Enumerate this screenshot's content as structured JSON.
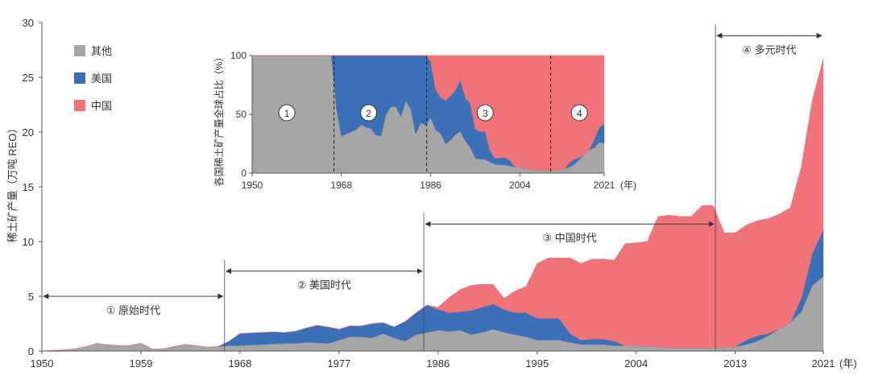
{
  "chart_data": [
    {
      "type": "area",
      "stacked": true,
      "ylabel": "稀土矿产量（万吨 REO）",
      "x_unit": "(年)",
      "xlim": [
        1950,
        2021
      ],
      "ylim": [
        0,
        30
      ],
      "x_ticks": [
        1950,
        1959,
        1968,
        1977,
        1986,
        1995,
        2004,
        2013,
        2021
      ],
      "y_ticks": [
        0,
        5,
        10,
        15,
        20,
        25,
        30
      ],
      "legend_position": "top-left",
      "x": [
        1950,
        1951,
        1952,
        1953,
        1954,
        1955,
        1956,
        1957,
        1958,
        1959,
        1960,
        1961,
        1962,
        1963,
        1964,
        1965,
        1966,
        1967,
        1968,
        1969,
        1970,
        1971,
        1972,
        1973,
        1974,
        1975,
        1976,
        1977,
        1978,
        1979,
        1980,
        1981,
        1982,
        1983,
        1984,
        1985,
        1986,
        1987,
        1988,
        1989,
        1990,
        1991,
        1992,
        1993,
        1994,
        1995,
        1996,
        1997,
        1998,
        1999,
        2000,
        2001,
        2002,
        2003,
        2004,
        2005,
        2006,
        2007,
        2008,
        2009,
        2010,
        2011,
        2012,
        2013,
        2014,
        2015,
        2016,
        2017,
        2018,
        2019,
        2020,
        2021
      ],
      "series": [
        {
          "name": "其他",
          "color": "#a6a6a6",
          "values": [
            0,
            0.05,
            0.1,
            0.2,
            0.4,
            0.7,
            0.55,
            0.5,
            0.5,
            0.7,
            0.2,
            0.2,
            0.4,
            0.6,
            0.5,
            0.35,
            0.4,
            0.5,
            0.5,
            0.55,
            0.6,
            0.65,
            0.7,
            0.7,
            0.8,
            0.75,
            0.7,
            1.0,
            1.3,
            1.3,
            1.2,
            1.6,
            1.2,
            0.9,
            1.5,
            1.7,
            1.9,
            1.8,
            1.9,
            1.5,
            1.7,
            2.0,
            1.7,
            1.5,
            1.3,
            1.0,
            1.0,
            1.0,
            0.8,
            0.6,
            0.6,
            0.6,
            0.5,
            0.5,
            0.5,
            0.4,
            0.4,
            0.3,
            0.3,
            0.3,
            0.3,
            0.3,
            0.3,
            0.4,
            0.6,
            0.9,
            1.4,
            2.0,
            2.6,
            3.6,
            6.0,
            6.8
          ]
        },
        {
          "name": "美国",
          "color": "#3b6fb6",
          "values": [
            0,
            0,
            0,
            0,
            0,
            0,
            0,
            0,
            0,
            0,
            0,
            0,
            0,
            0,
            0,
            0,
            0,
            0.4,
            1.1,
            1.1,
            1.1,
            1.1,
            1.0,
            1.1,
            1.3,
            1.6,
            1.5,
            1.0,
            1.0,
            1.0,
            1.3,
            1.0,
            1.0,
            1.8,
            2.0,
            2.5,
            1.9,
            1.7,
            1.7,
            2.2,
            2.3,
            2.3,
            2.1,
            2.0,
            2.2,
            2.0,
            2.0,
            2.0,
            0.8,
            0.4,
            0.5,
            0.5,
            0.4,
            0.0,
            0.0,
            0.0,
            0.0,
            0.0,
            0.0,
            0.0,
            0.0,
            0.0,
            0.0,
            0.0,
            0.4,
            0.5,
            0.2,
            0.0,
            0.0,
            1.2,
            2.9,
            4.3
          ]
        },
        {
          "name": "中国",
          "color": "#f0737a",
          "values": [
            0,
            0,
            0,
            0,
            0,
            0,
            0,
            0,
            0,
            0,
            0,
            0,
            0,
            0,
            0,
            0,
            0,
            0,
            0,
            0,
            0,
            0,
            0,
            0,
            0,
            0,
            0,
            0,
            0,
            0,
            0,
            0,
            0,
            0,
            0,
            0,
            0.2,
            1.4,
            2.0,
            2.3,
            2.1,
            1.8,
            1.0,
            2.0,
            2.4,
            5.0,
            5.5,
            5.5,
            6.9,
            7.0,
            7.3,
            7.3,
            7.4,
            9.3,
            9.4,
            9.6,
            11.9,
            12.1,
            12.0,
            12.0,
            13.0,
            13.0,
            10.5,
            10.4,
            10.5,
            10.5,
            10.5,
            10.5,
            10.5,
            12.0,
            14.0,
            15.6
          ]
        }
      ],
      "eras": [
        {
          "label": "① 原始时代",
          "start": 1950,
          "end": 1966.6,
          "y": 5
        },
        {
          "label": "② 美国时代",
          "start": 1966.6,
          "end": 1984.7,
          "y": 7.3
        },
        {
          "label": "③ 中国时代",
          "start": 1984.7,
          "end": 2011.2,
          "y": 11.6
        },
        {
          "label": "④ 多元时代",
          "start": 2011.2,
          "end": 2021,
          "y": 28.8
        }
      ]
    },
    {
      "type": "area",
      "stacked": true,
      "normalized": true,
      "ylabel": "各国稀土矿产量全球占比（%）",
      "x_unit": "(年)",
      "xlim": [
        1950,
        2021
      ],
      "ylim": [
        0,
        100
      ],
      "x_ticks": [
        1950,
        1968,
        1986,
        2004,
        2021
      ],
      "y_ticks": [
        0,
        50,
        100
      ],
      "dividers": [
        1966.5,
        1985.2,
        2010.2
      ],
      "region_labels": [
        {
          "label": "1",
          "x": 1957
        },
        {
          "label": "2",
          "x": 1973.5
        },
        {
          "label": "3",
          "x": 1997
        },
        {
          "label": "4",
          "x": 2016
        }
      ]
    }
  ]
}
